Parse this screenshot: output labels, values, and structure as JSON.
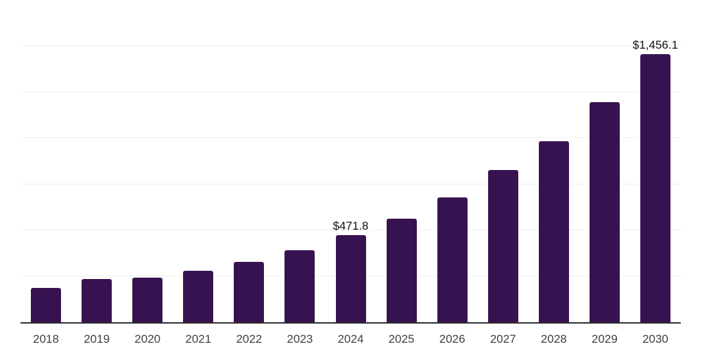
{
  "chart_data": {
    "type": "bar",
    "title": "",
    "xlabel": "",
    "ylabel": "",
    "categories": [
      "2018",
      "2019",
      "2020",
      "2021",
      "2022",
      "2023",
      "2024",
      "2025",
      "2026",
      "2027",
      "2028",
      "2029",
      "2030"
    ],
    "values": [
      186,
      236,
      244,
      279,
      329,
      392,
      471.8,
      561,
      678,
      825,
      984,
      1194,
      1456.1
    ],
    "data_labels": [
      "",
      "",
      "",
      "",
      "",
      "",
      "$471.8",
      "",
      "",
      "",
      "",
      "",
      "$1,456.1"
    ],
    "labeled_values_visible": [
      "$471.8",
      "$1,456.1"
    ],
    "ylim": [
      0,
      1750
    ],
    "gridline_interval": 250,
    "grid": "horizontal",
    "legend": "none",
    "colors": {
      "bar": "#371250",
      "gridline": "#f0f0f1",
      "axis_line": "#2e2e2e",
      "tick_label": "#3f3f3f",
      "data_label": "#111111",
      "background": "#ffffff"
    }
  }
}
